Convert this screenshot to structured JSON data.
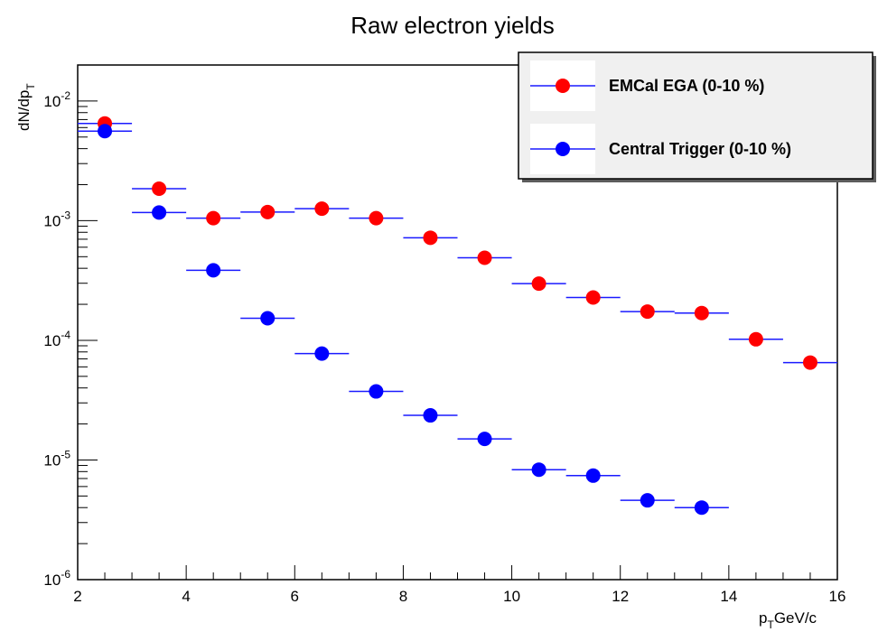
{
  "chart_data": {
    "type": "scatter",
    "title": "Raw electron yields",
    "xlabel": {
      "base": "p",
      "sub": "T",
      "rest": "GeV/c"
    },
    "ylabel": {
      "base": "dN/dp",
      "sub": "T"
    },
    "xlim": [
      2,
      16
    ],
    "ylim": [
      1e-06,
      0.02
    ],
    "yscale": "log",
    "x_ticks": [
      "2",
      "4",
      "6",
      "8",
      "10",
      "12",
      "14",
      "16"
    ],
    "y_ticks": [
      {
        "base": "10",
        "exp": "-6",
        "value": 1e-06
      },
      {
        "base": "10",
        "exp": "-5",
        "value": 1e-05
      },
      {
        "base": "10",
        "exp": "-4",
        "value": 0.0001
      },
      {
        "base": "10",
        "exp": "-3",
        "value": 0.001
      },
      {
        "base": "10",
        "exp": "-2",
        "value": 0.01
      }
    ],
    "grid": false,
    "legend_position": "top-right",
    "marker_line_color": "#1a1aff",
    "series": [
      {
        "name": "EMCal EGA (0-10 %)",
        "color": "#ff0000",
        "points": [
          {
            "x": 2.5,
            "y": 0.0065,
            "xerr": 0.5
          },
          {
            "x": 3.5,
            "y": 0.00185,
            "xerr": 0.5
          },
          {
            "x": 4.5,
            "y": 0.00105,
            "xerr": 0.5
          },
          {
            "x": 5.5,
            "y": 0.00118,
            "xerr": 0.5
          },
          {
            "x": 6.5,
            "y": 0.00126,
            "xerr": 0.5
          },
          {
            "x": 7.5,
            "y": 0.00105,
            "xerr": 0.5
          },
          {
            "x": 8.5,
            "y": 0.00072,
            "xerr": 0.5
          },
          {
            "x": 9.5,
            "y": 0.00049,
            "xerr": 0.5
          },
          {
            "x": 10.5,
            "y": 0.000298,
            "xerr": 0.5
          },
          {
            "x": 11.5,
            "y": 0.000228,
            "xerr": 0.5
          },
          {
            "x": 12.5,
            "y": 0.000174,
            "xerr": 0.5
          },
          {
            "x": 13.5,
            "y": 0.000169,
            "xerr": 0.5
          },
          {
            "x": 14.5,
            "y": 0.000102,
            "xerr": 0.5
          },
          {
            "x": 15.5,
            "y": 6.52e-05,
            "xerr": 0.5
          }
        ]
      },
      {
        "name": "Central Trigger (0-10 %)",
        "color": "#0000ff",
        "points": [
          {
            "x": 2.5,
            "y": 0.0056,
            "xerr": 0.5
          },
          {
            "x": 3.5,
            "y": 0.00117,
            "xerr": 0.5
          },
          {
            "x": 4.5,
            "y": 0.000385,
            "xerr": 0.5
          },
          {
            "x": 5.5,
            "y": 0.000153,
            "xerr": 0.5
          },
          {
            "x": 6.5,
            "y": 7.75e-05,
            "xerr": 0.5
          },
          {
            "x": 7.5,
            "y": 3.74e-05,
            "xerr": 0.5
          },
          {
            "x": 8.5,
            "y": 2.36e-05,
            "xerr": 0.5
          },
          {
            "x": 9.5,
            "y": 1.5e-05,
            "xerr": 0.5
          },
          {
            "x": 10.5,
            "y": 8.3e-06,
            "xerr": 0.5
          },
          {
            "x": 11.5,
            "y": 7.4e-06,
            "xerr": 0.5
          },
          {
            "x": 12.5,
            "y": 4.6e-06,
            "xerr": 0.5
          },
          {
            "x": 13.5,
            "y": 4e-06,
            "xerr": 0.5
          }
        ]
      }
    ]
  }
}
